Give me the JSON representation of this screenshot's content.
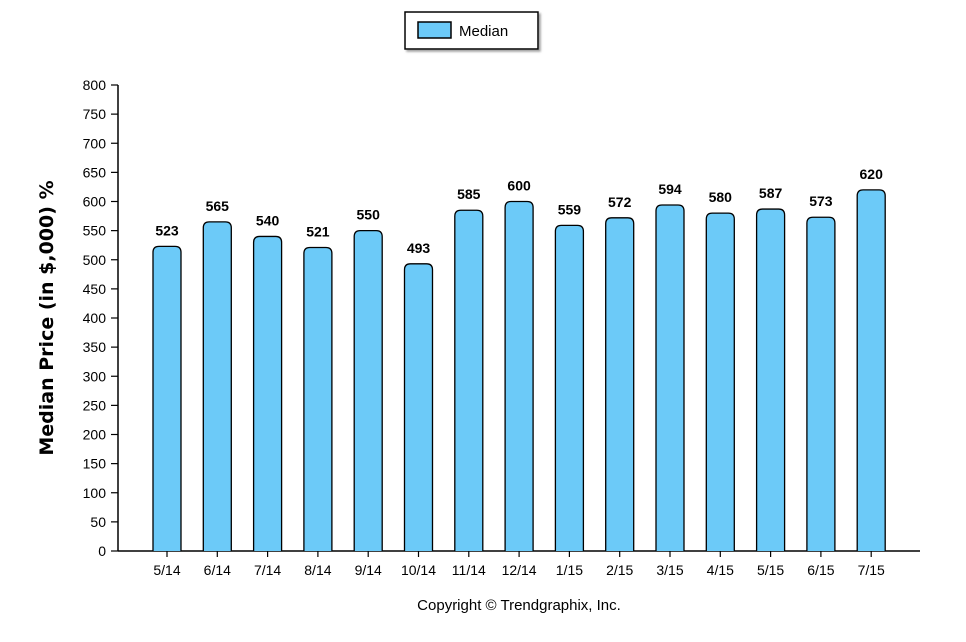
{
  "chart_data": {
    "type": "bar",
    "categories": [
      "5/14",
      "6/14",
      "7/14",
      "8/14",
      "9/14",
      "10/14",
      "11/14",
      "12/14",
      "1/15",
      "2/15",
      "3/15",
      "4/15",
      "5/15",
      "6/15",
      "7/15"
    ],
    "series": [
      {
        "name": "Median",
        "values": [
          523,
          565,
          540,
          521,
          550,
          493,
          585,
          600,
          559,
          572,
          594,
          580,
          587,
          573,
          620
        ],
        "color": "#6ccaf8"
      }
    ],
    "ylabel": "Median Price (in $,000) %",
    "xlabel": "",
    "ylim": [
      0,
      800
    ],
    "ytick_step": 50,
    "legend_position": "top-center",
    "grid": false,
    "data_labels": true
  },
  "footer": {
    "copyright": "Copyright © Trendgraphix, Inc."
  }
}
